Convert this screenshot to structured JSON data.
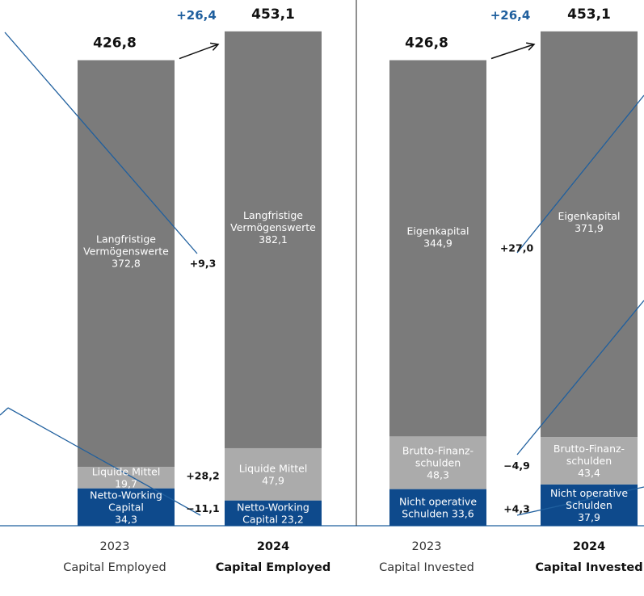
{
  "colors": {
    "dark_gray": "#7b7b7b",
    "light_gray": "#ababab",
    "navy": "#0e4a8c",
    "accent_blue": "#1f5f9e",
    "line": "#1f5f9e"
  },
  "chart_data": {
    "type": "bar",
    "stacked": true,
    "unit": "",
    "groups": [
      {
        "name": "Capital Employed",
        "bars": [
          {
            "year": "2023",
            "name": "Capital Employed",
            "total": 426.8,
            "total_label": "426,8",
            "highlight": false,
            "segments": [
              {
                "lines": [
                  "Netto-Working",
                  "Capital",
                  "34,3"
                ],
                "value": 34.3,
                "color": "#0e4a8c"
              },
              {
                "lines": [
                  "Liquide Mittel",
                  "19,7"
                ],
                "value": 19.7,
                "color": "#ababab"
              },
              {
                "lines": [
                  "Langfristige",
                  "Vermögenswerte",
                  "372,8"
                ],
                "value": 372.8,
                "color": "#7b7b7b"
              }
            ]
          },
          {
            "year": "2024",
            "name": "Capital Employed",
            "total": 453.1,
            "total_label": "453,1",
            "highlight": true,
            "segments": [
              {
                "lines": [
                  "Netto-Working",
                  "Capital 23,2"
                ],
                "value": 23.2,
                "color": "#0e4a8c"
              },
              {
                "lines": [
                  "Liquide Mittel",
                  "47,9"
                ],
                "value": 47.9,
                "color": "#ababab"
              },
              {
                "lines": [
                  "Langfristige",
                  "Vermögenswerte",
                  "382,1"
                ],
                "value": 382.1,
                "color": "#7b7b7b"
              }
            ]
          }
        ],
        "total_delta": "+26,4",
        "deltas": [
          "−11,1",
          "+28,2",
          "+9,3"
        ]
      },
      {
        "name": "Capital Invested",
        "bars": [
          {
            "year": "2023",
            "name": "Capital Invested",
            "total": 426.8,
            "total_label": "426,8",
            "highlight": false,
            "segments": [
              {
                "lines": [
                  "Nicht operative",
                  "Schulden 33,6"
                ],
                "value": 33.6,
                "color": "#0e4a8c"
              },
              {
                "lines": [
                  "Brutto-Finanz-",
                  "schulden",
                  "48,3"
                ],
                "value": 48.3,
                "color": "#ababab"
              },
              {
                "lines": [
                  "Eigenkapital",
                  "344,9"
                ],
                "value": 344.9,
                "color": "#7b7b7b"
              }
            ]
          },
          {
            "year": "2024",
            "name": "Capital Invested",
            "total": 453.1,
            "total_label": "453,1",
            "highlight": true,
            "segments": [
              {
                "lines": [
                  "Nicht operative",
                  "Schulden",
                  "37,9"
                ],
                "value": 37.9,
                "color": "#0e4a8c"
              },
              {
                "lines": [
                  "Brutto-Finanz-",
                  "schulden",
                  "43,4"
                ],
                "value": 43.4,
                "color": "#ababab"
              },
              {
                "lines": [
                  "Eigenkapital",
                  "371,9"
                ],
                "value": 371.9,
                "color": "#7b7b7b"
              }
            ]
          }
        ],
        "total_delta": "+26,4",
        "deltas": [
          "+4,3",
          "−4,9",
          "+27,0"
        ]
      }
    ]
  }
}
